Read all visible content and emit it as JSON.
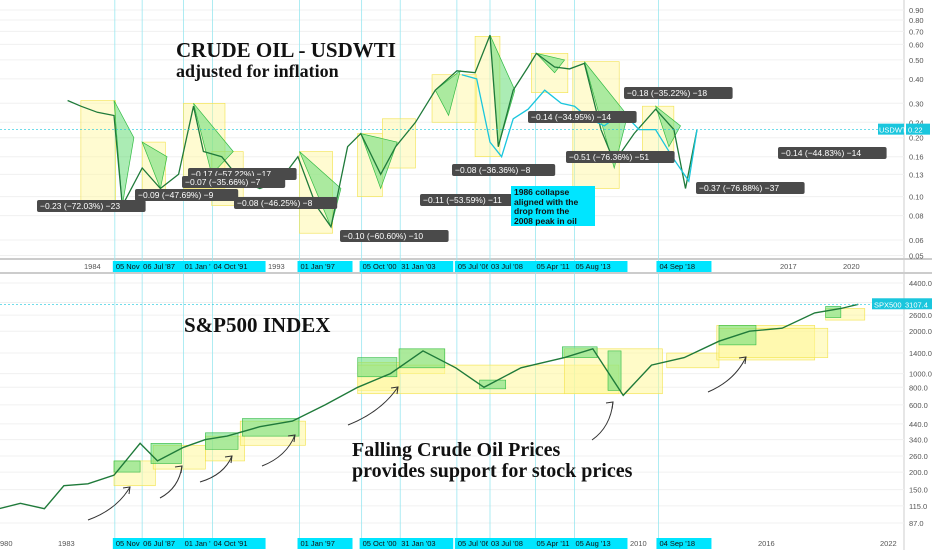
{
  "chart_data": [
    {
      "type": "line",
      "title": "CRUDE OIL - USDWTI",
      "subtitle": "adjusted for inflation",
      "scale": "log",
      "ylim": [
        0.05,
        0.9
      ],
      "y_ticks": [
        "0.90",
        "0.80",
        "0.70",
        "0.60",
        "0.50",
        "0.40",
        "0.30",
        "0.24",
        "0.20",
        "0.16",
        "0.13",
        "0.10",
        "0.08",
        "0.06",
        "0.05"
      ],
      "x_ticks": [
        "1984",
        "1993",
        "199",
        "1999",
        "2005",
        "2017",
        "2020"
      ],
      "series_label": "USDWTI",
      "last_value": "0.22",
      "series": [
        {
          "x": [
            1983.0,
            1983.8,
            1984.8,
            1985.8,
            1986.3,
            1987.5,
            1988.6,
            1989.7,
            1990.6,
            1991.2,
            1992.3,
            1993.5,
            1994.6,
            1995.8,
            1996.9,
            1998.0,
            1998.9,
            1999.9,
            2000.7,
            2001.9,
            2002.8,
            2004.0,
            2005.2,
            2006.5,
            2007.6,
            2008.5,
            2009.0,
            2009.9,
            2010.8,
            2011.3,
            2012.4,
            2013.3,
            2014.2,
            2015.2,
            2016.0,
            2017.2,
            2018.5,
            2019.6,
            2020.3,
            2021.0
          ],
          "y": [
            0.31,
            0.29,
            0.27,
            0.26,
            0.09,
            0.14,
            0.11,
            0.13,
            0.29,
            0.17,
            0.16,
            0.12,
            0.11,
            0.12,
            0.16,
            0.09,
            0.07,
            0.18,
            0.21,
            0.13,
            0.18,
            0.24,
            0.35,
            0.44,
            0.43,
            0.67,
            0.18,
            0.35,
            0.46,
            0.54,
            0.46,
            0.45,
            0.48,
            0.22,
            0.15,
            0.21,
            0.28,
            0.22,
            0.11,
            0.22
          ]
        }
      ],
      "annotations": [
        "−0.23 (−72.03%) −23",
        "−0.09 (−47.69%) −9",
        "−0.17 (−57.22%) −17",
        "−0.07 (−35.66%) −7",
        "−0.08 (−46.25%) −8",
        "−0.10 (−60.60%) −10",
        "−0.11 (−53.59%) −11",
        "−0.08 (−36.36%) −8",
        "−0.14 (−34.95%) −14",
        "−0.51 (−76.36%) −51",
        "−0.18 (−35.22%) −18",
        "−0.37 (−76.88%) −37",
        "−0.14 (−44.83%) −14"
      ],
      "note": [
        "1986 collapse",
        "aligned with the",
        "drop from the",
        "2008 peak in oil"
      ],
      "date_markers": [
        "05 Nov '85",
        "06 Jul '87",
        "01 Jan '90",
        "04 Oct '91",
        "01 Jan '97",
        "05 Oct '00",
        "31 Jan '03",
        "05 Jul '06",
        "03 Jul '08",
        "05 Apr '11",
        "05 Aug '13",
        "04 Sep '18"
      ]
    },
    {
      "type": "line",
      "title": "S&P500 INDEX",
      "scale": "log",
      "ylim": [
        87,
        4400
      ],
      "y_ticks": [
        "4400.0",
        "3200.0",
        "2600.0",
        "2000.0",
        "1400.0",
        "1000.0",
        "800.0",
        "600.0",
        "440.0",
        "340.0",
        "260.0",
        "200.0",
        "150.0",
        "115.0",
        "87.0"
      ],
      "x_ticks": [
        "980",
        "1983",
        "199",
        "1995",
        "1998",
        "004",
        "2010",
        "2016",
        "2022"
      ],
      "series_label": "SPX500",
      "last_value": "3107.4",
      "series": [
        {
          "x": [
            1980.0,
            1981.5,
            1982.6,
            1983.5,
            1984.6,
            1985.8,
            1987.0,
            1987.8,
            1989.0,
            1990.0,
            1991.0,
            1992.5,
            1994.0,
            1995.5,
            1997.0,
            1998.5,
            2000.0,
            2001.5,
            2002.8,
            2004.5,
            2006.5,
            2007.8,
            2009.2,
            2010.5,
            2012.0,
            2013.6,
            2015.0,
            2016.5,
            2018.0,
            2019.2,
            2020.0
          ],
          "y": [
            105,
            120,
            110,
            160,
            165,
            190,
            320,
            240,
            300,
            340,
            360,
            420,
            460,
            600,
            800,
            1000,
            1450,
            1100,
            800,
            1100,
            1300,
            1500,
            700,
            1150,
            1300,
            1700,
            2000,
            2100,
            2700,
            2900,
            3107
          ]
        }
      ],
      "annotations": [
        "Falling Crude Oil Prices",
        "provides support for stock prices"
      ],
      "date_markers": [
        "05 Nov '85",
        "06 Jul '87",
        "01 Jan '90",
        "04 Oct '91",
        "01 Jan '97",
        "05 Oct '00",
        "31 Jan '03",
        "05 Jul '06",
        "03 Jul '08",
        "05 Apr '11",
        "05 Aug '13",
        "04 Sep '18"
      ]
    }
  ]
}
